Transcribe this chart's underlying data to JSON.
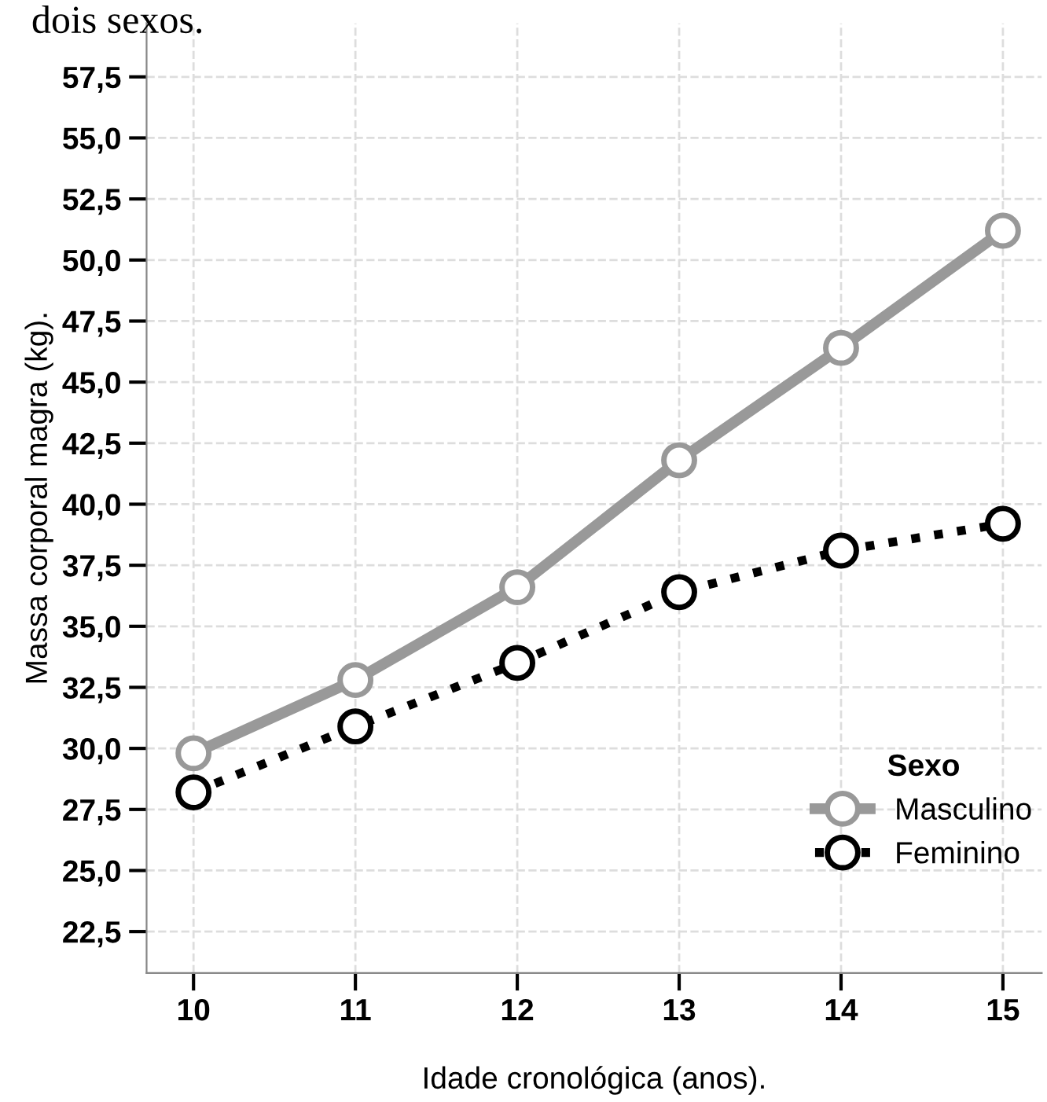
{
  "chart_data": {
    "type": "line",
    "xlabel": "Idade cronológica (anos).",
    "ylabel": "Massa corporal magra (kg).",
    "legend_title": "Sexo",
    "annotations": [
      "dois sexos."
    ],
    "x": [
      10,
      11,
      12,
      13,
      14,
      15
    ],
    "series": [
      {
        "name": "Masculino",
        "color": "#999999",
        "values": [
          29.8,
          32.8,
          36.6,
          41.8,
          46.4,
          51.2
        ],
        "line_style": "solid"
      },
      {
        "name": "Feminino",
        "color": "#000000",
        "values": [
          28.2,
          30.9,
          33.5,
          36.4,
          38.1,
          39.2
        ],
        "line_style": "dotted"
      }
    ],
    "xlim": [
      9.71,
      15.24
    ],
    "xticks": [
      10,
      11,
      12,
      13,
      14,
      15
    ],
    "ylim": [
      20.8,
      59.7
    ],
    "yticks": [
      {
        "value": 22.5,
        "label": "22,5"
      },
      {
        "value": 25,
        "label": "25,0"
      },
      {
        "value": 27.5,
        "label": "27,5"
      },
      {
        "value": 30,
        "label": "30,0"
      },
      {
        "value": 32.5,
        "label": "32,5"
      },
      {
        "value": 35,
        "label": "35,0"
      },
      {
        "value": 37.5,
        "label": "37,5"
      },
      {
        "value": 40,
        "label": "40,0"
      },
      {
        "value": 42.5,
        "label": "42,5"
      },
      {
        "value": 45,
        "label": "45,0"
      },
      {
        "value": 47.5,
        "label": "47,5"
      },
      {
        "value": 50,
        "label": "50,0"
      },
      {
        "value": 52.5,
        "label": "52,5"
      },
      {
        "value": 55,
        "label": "55,0"
      },
      {
        "value": 57.5,
        "label": "57,5"
      }
    ],
    "grid": true,
    "legend": "bottom right",
    "marker": "circle"
  }
}
